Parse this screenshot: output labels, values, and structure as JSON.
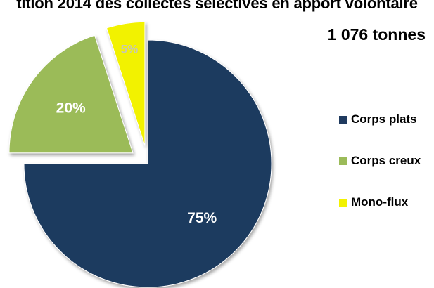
{
  "chart_data": {
    "type": "pie",
    "title": "tition 2014 des collectes sélectives en apport volontaire",
    "subtitle": "1 076 tonnes",
    "legend_position": "right",
    "exploded": [
      "Corps creux",
      "Mono-flux"
    ],
    "slices": [
      {
        "name": "Corps plats",
        "value": 75,
        "label": "75%",
        "color": "#1f3a5f"
      },
      {
        "name": "Corps creux",
        "value": 20,
        "label": "20%",
        "color": "#9bbb59"
      },
      {
        "name": "Mono-flux",
        "value": 5,
        "label": "5%",
        "color": "#f2f200"
      }
    ]
  }
}
